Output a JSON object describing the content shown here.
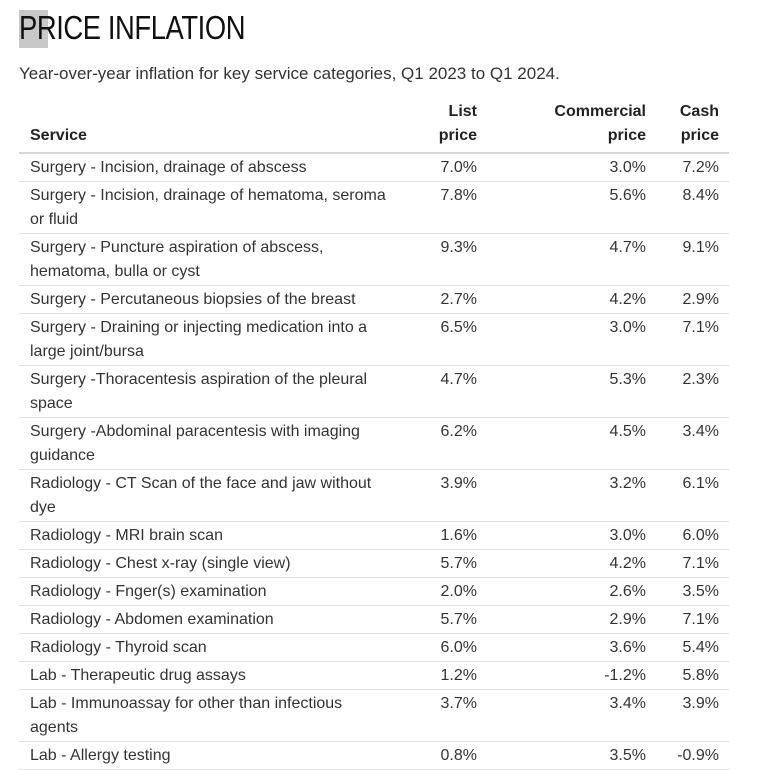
{
  "header": {
    "title": "PRICE INFLATION",
    "subtitle": "Year-over-year inflation for key service categories, Q1 2023 to Q1 2024."
  },
  "table": {
    "columns": {
      "service": "Service",
      "list_line1": "List",
      "list_line2": "price",
      "commercial_line1": "Commercial",
      "commercial_line2": "price",
      "cash_line1": "Cash",
      "cash_line2": "price"
    },
    "rows": [
      {
        "service": "Surgery - Incision, drainage of abscess",
        "list": "7.0%",
        "commercial": "3.0%",
        "cash": "7.2%"
      },
      {
        "service": "Surgery - Incision, drainage of hematoma, seroma or fluid",
        "list": "7.8%",
        "commercial": "5.6%",
        "cash": "8.4%"
      },
      {
        "service": "Surgery - Puncture aspiration of abscess, hematoma, bulla or cyst",
        "list": "9.3%",
        "commercial": "4.7%",
        "cash": "9.1%"
      },
      {
        "service": "Surgery - Percutaneous biopsies of the breast",
        "list": "2.7%",
        "commercial": "4.2%",
        "cash": "2.9%"
      },
      {
        "service": "Surgery - Draining or injecting medication into a large joint/bursa",
        "list": "6.5%",
        "commercial": "3.0%",
        "cash": "7.1%"
      },
      {
        "service": "Surgery -Thoracentesis aspiration of the pleural space",
        "list": "4.7%",
        "commercial": "5.3%",
        "cash": "2.3%"
      },
      {
        "service": "Surgery -Abdominal paracentesis with imaging guidance",
        "list": "6.2%",
        "commercial": "4.5%",
        "cash": "3.4%"
      },
      {
        "service": "Radiology - CT Scan of the face and jaw without dye",
        "list": "3.9%",
        "commercial": "3.2%",
        "cash": "6.1%"
      },
      {
        "service": "Radiology - MRI brain scan",
        "list": "1.6%",
        "commercial": "3.0%",
        "cash": "6.0%"
      },
      {
        "service": "Radiology - Chest x-ray (single view)",
        "list": "5.7%",
        "commercial": "4.2%",
        "cash": "7.1%"
      },
      {
        "service": "Radiology - Fnger(s) examination",
        "list": "2.0%",
        "commercial": "2.6%",
        "cash": "3.5%"
      },
      {
        "service": "Radiology - Abdomen examination",
        "list": "5.7%",
        "commercial": "2.9%",
        "cash": "7.1%"
      },
      {
        "service": "Radiology - Thyroid scan",
        "list": "6.0%",
        "commercial": "3.6%",
        "cash": "5.4%"
      },
      {
        "service": "Lab - Therapeutic drug assays",
        "list": "1.2%",
        "commercial": "-1.2%",
        "cash": "5.8%"
      },
      {
        "service": "Lab - Immunoassay for other than infectious agents",
        "list": "3.7%",
        "commercial": "3.4%",
        "cash": "3.9%"
      },
      {
        "service": "Lab - Allergy testing",
        "list": "0.8%",
        "commercial": "3.5%",
        "cash": "-0.9%"
      }
    ]
  }
}
